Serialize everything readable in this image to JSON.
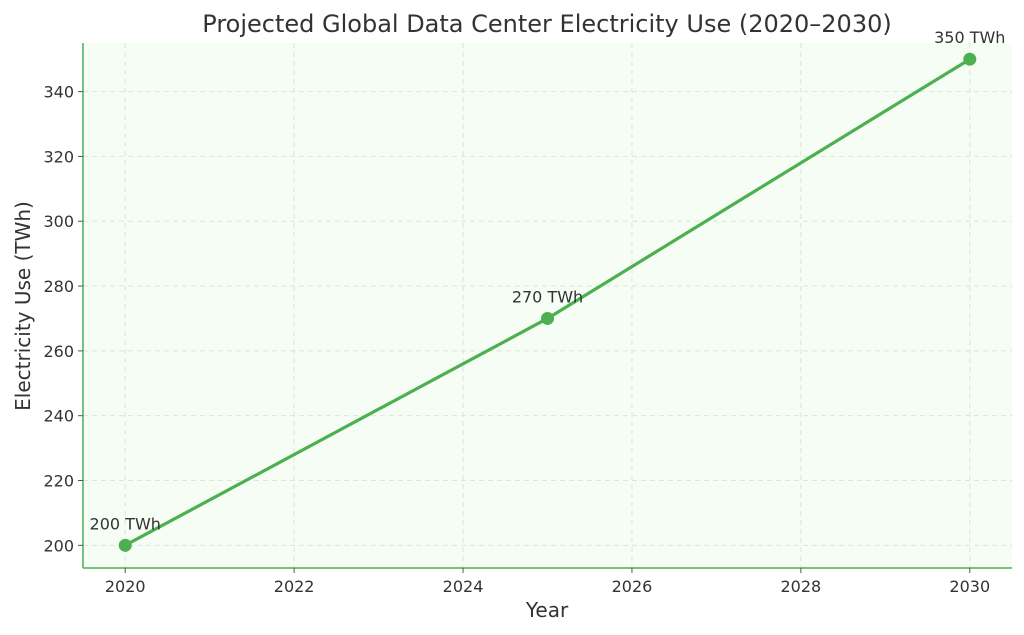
{
  "chart_data": {
    "type": "line",
    "title": "Projected Global Data Center Electricity Use (2020–2030)",
    "xlabel": "Year",
    "ylabel": "Electricity Use (TWh)",
    "xlim": [
      2019.5,
      2030.5
    ],
    "ylim": [
      193,
      355
    ],
    "x_ticks": [
      2020,
      2022,
      2024,
      2026,
      2028,
      2030
    ],
    "y_ticks": [
      200,
      220,
      240,
      260,
      280,
      300,
      320,
      340
    ],
    "grid": true,
    "series": [
      {
        "x": [
          2020,
          2025,
          2030
        ],
        "values": [
          200,
          270,
          350
        ],
        "labels": [
          "200 TWh",
          "270 TWh",
          "350 TWh"
        ]
      }
    ],
    "colors": {
      "line": "#4caf50",
      "plot_background": "#f5fdf5",
      "axis": "#4caf50",
      "grid": "#d9e6d9",
      "text": "#333333"
    }
  }
}
